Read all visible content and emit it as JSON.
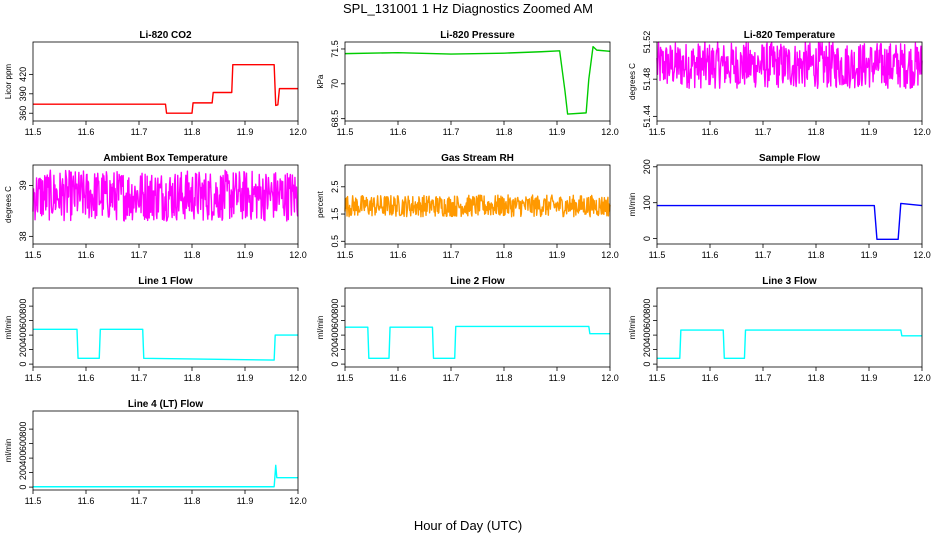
{
  "figure": {
    "title": "SPL_131001  1 Hz Diagnostics Zoomed AM",
    "xlabel": "Hour of Day (UTC)"
  },
  "chart_data": [
    {
      "type": "line",
      "title": "Li-820 CO2",
      "ylabel": "Licor ppm",
      "color": "#ff0000",
      "xlim": [
        11.5,
        12.0
      ],
      "ylim": [
        348,
        470
      ],
      "xticks": [
        "11.5",
        "11.6",
        "11.7",
        "11.8",
        "11.9",
        "12.0"
      ],
      "yticks": [
        360,
        390,
        420
      ],
      "x": [
        11.5,
        11.75,
        11.752,
        11.8,
        11.802,
        11.838,
        11.84,
        11.875,
        11.877,
        11.955,
        11.958,
        11.962,
        11.965,
        12.0
      ],
      "y": [
        374,
        374,
        360,
        360,
        376,
        376,
        392,
        392,
        435,
        435,
        372,
        373,
        398,
        398
      ]
    },
    {
      "type": "line",
      "title": "Li-820 Pressure",
      "ylabel": "kPa",
      "color": "#00cc00",
      "xlim": [
        11.5,
        12.0
      ],
      "ylim": [
        68.4,
        71.8
      ],
      "xticks": [
        "11.5",
        "11.6",
        "11.7",
        "11.8",
        "11.9",
        "12.0"
      ],
      "yticks": [
        68.5,
        70.0,
        71.5
      ],
      "x": [
        11.5,
        11.6,
        11.7,
        11.8,
        11.87,
        11.905,
        11.915,
        11.92,
        11.955,
        11.96,
        11.968,
        11.975,
        12.0
      ],
      "y": [
        71.3,
        71.34,
        71.28,
        71.32,
        71.38,
        71.42,
        69.7,
        68.7,
        68.75,
        70.2,
        71.6,
        71.45,
        71.4
      ]
    },
    {
      "type": "line",
      "title": "Li-820 Temperature",
      "ylabel": "degrees C",
      "color": "#ff00ff",
      "xlim": [
        11.5,
        12.0
      ],
      "ylim": [
        51.435,
        51.52
      ],
      "xticks": [
        "11.5",
        "11.6",
        "11.7",
        "11.8",
        "11.9",
        "12.0"
      ],
      "yticks": [
        51.44,
        51.48,
        51.52
      ],
      "band": [
        51.47,
        51.52
      ],
      "x": [
        11.5,
        12.0
      ],
      "y": [
        51.47,
        51.52
      ]
    },
    {
      "type": "line",
      "title": "Ambient Box Temperature",
      "ylabel": "degrees C",
      "color": "#ff00ff",
      "xlim": [
        11.5,
        12.0
      ],
      "ylim": [
        37.85,
        39.4
      ],
      "xticks": [
        "11.5",
        "11.6",
        "11.7",
        "11.8",
        "11.9",
        "12.0"
      ],
      "yticks": [
        38.0,
        39.0
      ],
      "band": [
        38.3,
        39.3
      ],
      "x": [
        11.5,
        12.0
      ],
      "y": [
        38.3,
        39.3
      ]
    },
    {
      "type": "line",
      "title": "Gas Stream RH",
      "ylabel": "percent",
      "color": "#ff9900",
      "xlim": [
        11.5,
        12.0
      ],
      "ylim": [
        0.4,
        3.3
      ],
      "xticks": [
        "11.5",
        "11.6",
        "11.7",
        "11.8",
        "11.9",
        "12.0"
      ],
      "yticks": [
        0.5,
        1.5,
        2.5
      ],
      "band": [
        1.4,
        2.2
      ],
      "x": [
        11.5,
        12.0
      ],
      "y": [
        1.4,
        2.2
      ]
    },
    {
      "type": "line",
      "title": "Sample Flow",
      "ylabel": "ml/min",
      "color": "#0000ff",
      "xlim": [
        11.5,
        12.0
      ],
      "ylim": [
        -15,
        205
      ],
      "xticks": [
        "11.5",
        "11.6",
        "11.7",
        "11.8",
        "11.9",
        "12.0"
      ],
      "yticks": [
        0,
        100,
        200
      ],
      "x": [
        11.5,
        11.91,
        11.915,
        11.955,
        11.96,
        12.0
      ],
      "y": [
        92,
        92,
        -2,
        -2,
        98,
        92
      ]
    },
    {
      "type": "line",
      "title": "Line 1 Flow",
      "ylabel": "ml/min",
      "color": "#00ffff",
      "xlim": [
        11.5,
        12.0
      ],
      "ylim": [
        -40,
        1050
      ],
      "xticks": [
        "11.5",
        "11.6",
        "11.7",
        "11.8",
        "11.9",
        "12.0"
      ],
      "yticks": [
        0,
        200,
        400,
        600,
        800
      ],
      "x": [
        11.5,
        11.583,
        11.585,
        11.625,
        11.627,
        11.707,
        11.709,
        11.955,
        11.957,
        12.0
      ],
      "y": [
        480,
        480,
        80,
        80,
        480,
        480,
        80,
        55,
        400,
        400
      ]
    },
    {
      "type": "line",
      "title": "Line 2 Flow",
      "ylabel": "ml/min",
      "color": "#00ffff",
      "xlim": [
        11.5,
        12.0
      ],
      "ylim": [
        -40,
        1050
      ],
      "xticks": [
        "11.5",
        "11.6",
        "11.7",
        "11.8",
        "11.9",
        "12.0"
      ],
      "yticks": [
        0,
        200,
        400,
        600,
        800
      ],
      "x": [
        11.5,
        11.543,
        11.545,
        11.583,
        11.585,
        11.665,
        11.667,
        11.707,
        11.709,
        11.96,
        11.962,
        12.0
      ],
      "y": [
        510,
        510,
        80,
        80,
        510,
        510,
        80,
        80,
        520,
        520,
        420,
        420
      ]
    },
    {
      "type": "line",
      "title": "Line 3 Flow",
      "ylabel": "ml/min",
      "color": "#00ffff",
      "xlim": [
        11.5,
        12.0
      ],
      "ylim": [
        -40,
        1050
      ],
      "xticks": [
        "11.5",
        "11.6",
        "11.7",
        "11.8",
        "11.9",
        "12.0"
      ],
      "yticks": [
        0,
        200,
        400,
        600,
        800
      ],
      "x": [
        11.5,
        11.543,
        11.545,
        11.625,
        11.627,
        11.665,
        11.667,
        11.96,
        11.962,
        12.0
      ],
      "y": [
        80,
        80,
        470,
        470,
        80,
        80,
        470,
        470,
        390,
        390
      ]
    },
    {
      "type": "line",
      "title": "Line 4 (LT) Flow",
      "ylabel": "ml/min",
      "color": "#00ffff",
      "xlim": [
        11.5,
        12.0
      ],
      "ylim": [
        -40,
        1050
      ],
      "xticks": [
        "11.5",
        "11.6",
        "11.7",
        "11.8",
        "11.9",
        "12.0"
      ],
      "yticks": [
        0,
        200,
        400,
        600,
        800
      ],
      "x": [
        11.5,
        11.955,
        11.956,
        11.958,
        11.96,
        12.0
      ],
      "y": [
        5,
        5,
        100,
        300,
        130,
        130
      ]
    }
  ]
}
